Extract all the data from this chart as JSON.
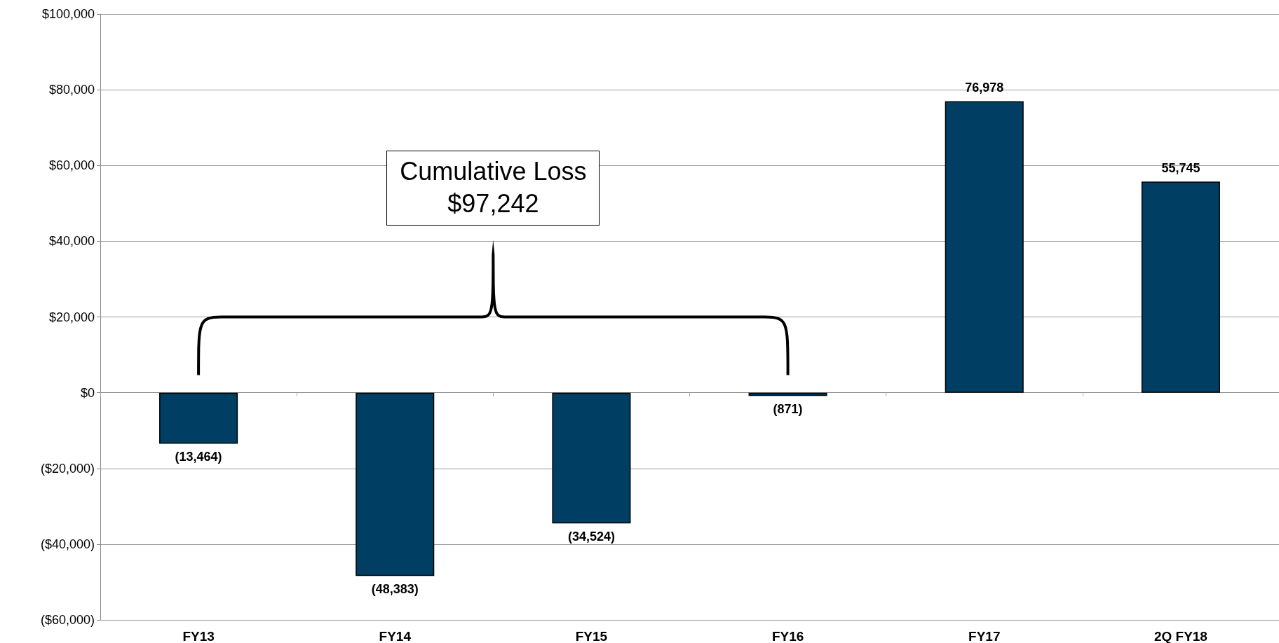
{
  "chart_data": {
    "type": "bar",
    "categories": [
      "FY13",
      "FY14",
      "FY15",
      "FY16",
      "FY17",
      "2Q FY18"
    ],
    "values": [
      -13464,
      -48383,
      -34524,
      -871,
      76978,
      55745
    ],
    "color": "#003f63",
    "value_labels": [
      "(13,464)",
      "(48,383)",
      "(34,524)",
      "(871)",
      "76,978",
      "55,745"
    ],
    "ylim": [
      -60000,
      100000
    ],
    "yticks": [
      {
        "value": -60000,
        "label": "($60,000)"
      },
      {
        "value": -40000,
        "label": "($40,000)"
      },
      {
        "value": -20000,
        "label": "($20,000)"
      },
      {
        "value": 0,
        "label": "$0"
      },
      {
        "value": 20000,
        "label": "$20,000"
      },
      {
        "value": 40000,
        "label": "$40,000"
      },
      {
        "value": 60000,
        "label": "$60,000"
      },
      {
        "value": 80000,
        "label": "$80,000"
      },
      {
        "value": 100000,
        "label": "$100,000"
      }
    ],
    "grid": "y",
    "annotations": [
      "Cumulative Loss\n$97,242"
    ]
  }
}
